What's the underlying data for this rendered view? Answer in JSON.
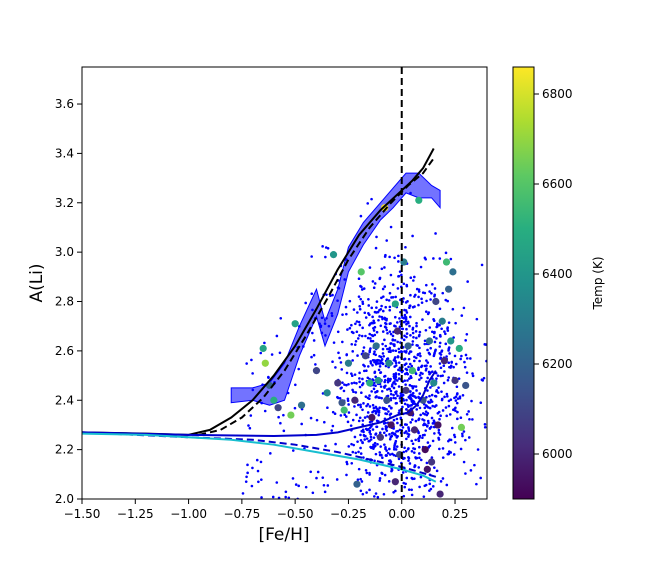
{
  "chart_data": {
    "type": "scatter",
    "xlabel": "[Fe/H]",
    "ylabel": "A(Li)",
    "xlim": [
      -1.5,
      0.4
    ],
    "ylim": [
      2.0,
      3.75
    ],
    "xticks": [
      -1.5,
      -1.25,
      -1.0,
      -0.75,
      -0.5,
      -0.25,
      0.0,
      0.25
    ],
    "xtick_labels": [
      "−1.50",
      "−1.25",
      "−1.00",
      "−0.75",
      "−0.50",
      "−0.25",
      "0.00",
      "0.25"
    ],
    "yticks": [
      2.0,
      2.2,
      2.4,
      2.6,
      2.8,
      3.0,
      3.2,
      3.4,
      3.6
    ],
    "ytick_labels": [
      "2.0",
      "2.2",
      "2.4",
      "2.6",
      "2.8",
      "3.0",
      "3.2",
      "3.4",
      "3.6"
    ],
    "vline_x": 0.0,
    "colorbar": {
      "label": "Temp (K)",
      "range": [
        5900,
        6860
      ],
      "ticks": [
        6000,
        6200,
        6400,
        6600,
        6800
      ],
      "tick_labels": [
        "6000",
        "6200",
        "6400",
        "6600",
        "6800"
      ],
      "colormap": "viridis"
    },
    "dense_scatter": {
      "color": "#0000ff",
      "description_hint": "small blue points, densest near [Fe/H]=0, A(Li) 2.0-3.0",
      "n": 1400,
      "seed": 7
    },
    "colored_points": [
      {
        "x": -0.65,
        "y": 2.61,
        "t": 6450
      },
      {
        "x": -0.64,
        "y": 2.55,
        "t": 6700
      },
      {
        "x": -0.62,
        "y": 2.46,
        "t": 6200
      },
      {
        "x": -0.6,
        "y": 2.4,
        "t": 6500
      },
      {
        "x": -0.58,
        "y": 2.37,
        "t": 6100
      },
      {
        "x": -0.52,
        "y": 2.34,
        "t": 6650
      },
      {
        "x": -0.5,
        "y": 2.71,
        "t": 6450
      },
      {
        "x": -0.47,
        "y": 2.38,
        "t": 6250
      },
      {
        "x": -0.4,
        "y": 2.52,
        "t": 6100
      },
      {
        "x": -0.35,
        "y": 2.43,
        "t": 6350
      },
      {
        "x": -0.32,
        "y": 2.99,
        "t": 6400
      },
      {
        "x": -0.3,
        "y": 2.47,
        "t": 6050
      },
      {
        "x": -0.28,
        "y": 2.39,
        "t": 6150
      },
      {
        "x": -0.27,
        "y": 2.36,
        "t": 6550
      },
      {
        "x": -0.25,
        "y": 2.55,
        "t": 6300
      },
      {
        "x": -0.22,
        "y": 2.4,
        "t": 6000
      },
      {
        "x": -0.21,
        "y": 2.06,
        "t": 6200
      },
      {
        "x": -0.19,
        "y": 2.92,
        "t": 6600
      },
      {
        "x": -0.17,
        "y": 2.58,
        "t": 6100
      },
      {
        "x": -0.15,
        "y": 2.47,
        "t": 6500
      },
      {
        "x": -0.14,
        "y": 2.33,
        "t": 5950
      },
      {
        "x": -0.12,
        "y": 2.62,
        "t": 6250
      },
      {
        "x": -0.11,
        "y": 2.48,
        "t": 6400
      },
      {
        "x": -0.1,
        "y": 2.25,
        "t": 6050
      },
      {
        "x": -0.08,
        "y": 3.18,
        "t": 6850
      },
      {
        "x": -0.07,
        "y": 2.4,
        "t": 6150
      },
      {
        "x": -0.06,
        "y": 2.55,
        "t": 6350
      },
      {
        "x": -0.05,
        "y": 2.3,
        "t": 5950
      },
      {
        "x": -0.03,
        "y": 2.79,
        "t": 6450
      },
      {
        "x": -0.02,
        "y": 2.68,
        "t": 6000
      },
      {
        "x": -0.01,
        "y": 2.18,
        "t": 6100
      },
      {
        "x": 0.01,
        "y": 2.96,
        "t": 6300
      },
      {
        "x": 0.02,
        "y": 2.44,
        "t": 6050
      },
      {
        "x": 0.03,
        "y": 2.62,
        "t": 6200
      },
      {
        "x": 0.04,
        "y": 2.35,
        "t": 5950
      },
      {
        "x": 0.05,
        "y": 2.52,
        "t": 6550
      },
      {
        "x": 0.06,
        "y": 2.28,
        "t": 6000
      },
      {
        "x": 0.08,
        "y": 3.21,
        "t": 6500
      },
      {
        "x": 0.1,
        "y": 2.4,
        "t": 6150
      },
      {
        "x": 0.11,
        "y": 2.2,
        "t": 5920
      },
      {
        "x": 0.13,
        "y": 2.64,
        "t": 6250
      },
      {
        "x": 0.14,
        "y": 2.15,
        "t": 6050
      },
      {
        "x": 0.15,
        "y": 2.47,
        "t": 6350
      },
      {
        "x": 0.16,
        "y": 2.8,
        "t": 6100
      },
      {
        "x": 0.17,
        "y": 2.3,
        "t": 5950
      },
      {
        "x": 0.19,
        "y": 2.72,
        "t": 6300
      },
      {
        "x": 0.2,
        "y": 2.56,
        "t": 6000
      },
      {
        "x": 0.21,
        "y": 2.96,
        "t": 6550
      },
      {
        "x": 0.22,
        "y": 2.85,
        "t": 6200
      },
      {
        "x": 0.23,
        "y": 2.64,
        "t": 6400
      },
      {
        "x": 0.24,
        "y": 2.92,
        "t": 6250
      },
      {
        "x": 0.25,
        "y": 2.48,
        "t": 6050
      },
      {
        "x": 0.27,
        "y": 2.61,
        "t": 6500
      },
      {
        "x": 0.28,
        "y": 2.29,
        "t": 6650
      },
      {
        "x": 0.3,
        "y": 2.46,
        "t": 6150
      },
      {
        "x": -0.03,
        "y": 2.07,
        "t": 6000
      },
      {
        "x": 0.12,
        "y": 2.12,
        "t": 5950
      },
      {
        "x": 0.18,
        "y": 2.02,
        "t": 6000
      }
    ],
    "series": [
      {
        "type": "band",
        "color": "#0000ff",
        "upper": [
          [
            -0.8,
            2.45
          ],
          [
            -0.7,
            2.45
          ],
          [
            -0.62,
            2.47
          ],
          [
            -0.55,
            2.55
          ],
          [
            -0.48,
            2.7
          ],
          [
            -0.4,
            2.85
          ],
          [
            -0.36,
            2.72
          ],
          [
            -0.3,
            2.85
          ],
          [
            -0.25,
            3.02
          ],
          [
            -0.18,
            3.12
          ],
          [
            -0.1,
            3.2
          ],
          [
            -0.04,
            3.26
          ],
          [
            0.02,
            3.32
          ],
          [
            0.08,
            3.32
          ],
          [
            0.14,
            3.27
          ],
          [
            0.18,
            3.25
          ]
        ],
        "lower": [
          [
            0.18,
            3.18
          ],
          [
            0.14,
            3.22
          ],
          [
            0.08,
            3.22
          ],
          [
            0.02,
            3.24
          ],
          [
            -0.04,
            3.18
          ],
          [
            -0.1,
            3.13
          ],
          [
            -0.18,
            3.03
          ],
          [
            -0.25,
            2.92
          ],
          [
            -0.3,
            2.75
          ],
          [
            -0.36,
            2.62
          ],
          [
            -0.4,
            2.74
          ],
          [
            -0.48,
            2.58
          ],
          [
            -0.55,
            2.4
          ],
          [
            -0.62,
            2.38
          ],
          [
            -0.7,
            2.4
          ],
          [
            -0.8,
            2.39
          ]
        ]
      },
      {
        "type": "line",
        "color": "#000000",
        "style": "solid",
        "points": [
          [
            -1.5,
            2.27
          ],
          [
            -1.2,
            2.265
          ],
          [
            -1.0,
            2.26
          ],
          [
            -0.9,
            2.28
          ],
          [
            -0.8,
            2.33
          ],
          [
            -0.7,
            2.4
          ],
          [
            -0.6,
            2.5
          ],
          [
            -0.5,
            2.62
          ],
          [
            -0.4,
            2.77
          ],
          [
            -0.3,
            2.93
          ],
          [
            -0.2,
            3.07
          ],
          [
            -0.1,
            3.17
          ],
          [
            0.0,
            3.25
          ],
          [
            0.05,
            3.29
          ],
          [
            0.1,
            3.34
          ],
          [
            0.15,
            3.42
          ]
        ]
      },
      {
        "type": "line",
        "color": "#000000",
        "style": "dashed",
        "points": [
          [
            -0.95,
            2.26
          ],
          [
            -0.85,
            2.28
          ],
          [
            -0.75,
            2.33
          ],
          [
            -0.65,
            2.41
          ],
          [
            -0.55,
            2.52
          ],
          [
            -0.45,
            2.66
          ],
          [
            -0.35,
            2.81
          ],
          [
            -0.25,
            2.97
          ],
          [
            -0.15,
            3.1
          ],
          [
            -0.05,
            3.2
          ],
          [
            0.03,
            3.27
          ],
          [
            0.1,
            3.32
          ],
          [
            0.15,
            3.38
          ]
        ]
      },
      {
        "type": "line",
        "color": "#0000cc",
        "style": "solid",
        "points": [
          [
            -1.5,
            2.27
          ],
          [
            -1.0,
            2.26
          ],
          [
            -0.6,
            2.255
          ],
          [
            -0.4,
            2.26
          ],
          [
            -0.3,
            2.27
          ],
          [
            -0.2,
            2.29
          ],
          [
            -0.1,
            2.31
          ],
          [
            -0.02,
            2.34
          ],
          [
            0.03,
            2.35
          ],
          [
            0.07,
            2.38
          ],
          [
            0.1,
            2.42
          ],
          [
            0.13,
            2.48
          ],
          [
            0.16,
            2.52
          ]
        ]
      },
      {
        "type": "line",
        "color": "#0000cc",
        "style": "dashed",
        "points": [
          [
            -1.5,
            2.27
          ],
          [
            -1.0,
            2.25
          ],
          [
            -0.7,
            2.24
          ],
          [
            -0.5,
            2.22
          ],
          [
            -0.3,
            2.19
          ],
          [
            -0.1,
            2.15
          ],
          [
            0.0,
            2.13
          ],
          [
            0.08,
            2.11
          ],
          [
            0.16,
            2.09
          ]
        ]
      },
      {
        "type": "line",
        "color": "#17becf",
        "style": "solid",
        "points": [
          [
            -1.5,
            2.265
          ],
          [
            -1.2,
            2.26
          ],
          [
            -1.0,
            2.25
          ],
          [
            -0.8,
            2.24
          ],
          [
            -0.6,
            2.22
          ],
          [
            -0.4,
            2.19
          ],
          [
            -0.2,
            2.16
          ],
          [
            0.0,
            2.12
          ],
          [
            0.1,
            2.095
          ],
          [
            0.16,
            2.07
          ]
        ]
      }
    ]
  }
}
